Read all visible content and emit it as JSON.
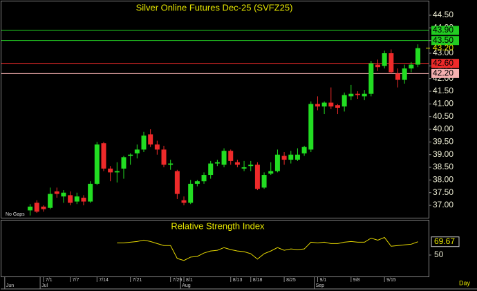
{
  "chart_data": [
    {
      "type": "candlestick",
      "title": "Silver Online Futures Dec-25 (SVFZ25)",
      "note": "No Gaps",
      "x": [
        0,
        1,
        2,
        3,
        4,
        5,
        6,
        7,
        8,
        9,
        10,
        11,
        12,
        13,
        14,
        15,
        16,
        17,
        18,
        19,
        20,
        21,
        22,
        23,
        24,
        25,
        26,
        27,
        28,
        29,
        30,
        31,
        32,
        33,
        34,
        35,
        36,
        37,
        38,
        39,
        40,
        41,
        42,
        43,
        44,
        45,
        46,
        47,
        48,
        49,
        50,
        51,
        52,
        53,
        54,
        55,
        56,
        57,
        58
      ],
      "open": [
        36.8,
        37.1,
        36.95,
        36.9,
        37.55,
        37.35,
        37.4,
        37.15,
        37.3,
        37.15,
        37.85,
        39.45,
        38.45,
        38.3,
        38.45,
        38.95,
        39.05,
        39.2,
        39.8,
        39.4,
        39.2,
        38.6,
        38.35,
        37.2,
        37.1,
        37.85,
        37.95,
        38.2,
        38.65,
        38.6,
        39.15,
        38.7,
        38.45,
        38.55,
        38.6,
        37.7,
        38.25,
        38.35,
        38.95,
        38.8,
        38.8,
        39.05,
        39.2,
        41.0,
        40.9,
        41.05,
        40.95,
        40.9,
        41.3,
        41.4,
        41.3,
        41.4,
        42.55,
        42.5,
        43.0,
        42.2,
        41.95,
        42.4,
        42.55
      ],
      "high": [
        37.05,
        37.2,
        37.0,
        37.7,
        37.7,
        37.6,
        37.55,
        37.5,
        37.4,
        37.95,
        39.5,
        39.5,
        38.55,
        38.7,
        38.95,
        39.05,
        39.4,
        39.9,
        40.0,
        39.55,
        39.35,
        38.8,
        38.4,
        37.35,
        38.0,
        38.0,
        38.3,
        38.75,
        38.8,
        39.25,
        39.2,
        38.8,
        38.75,
        38.75,
        38.7,
        38.3,
        38.7,
        39.2,
        39.1,
        39.15,
        39.25,
        39.35,
        41.1,
        41.3,
        41.1,
        41.65,
        41.0,
        41.45,
        41.75,
        41.5,
        41.55,
        42.7,
        42.75,
        43.1,
        43.15,
        42.4,
        42.55,
        42.65,
        43.35
      ],
      "low": [
        36.6,
        36.7,
        36.75,
        36.85,
        37.3,
        37.1,
        37.0,
        37.05,
        37.0,
        37.1,
        37.8,
        38.35,
        37.95,
        37.9,
        38.05,
        38.6,
        38.85,
        39.1,
        39.3,
        39.0,
        38.5,
        38.4,
        37.25,
        37.0,
        37.05,
        37.75,
        37.85,
        38.05,
        38.55,
        38.5,
        38.6,
        38.5,
        38.35,
        38.35,
        37.6,
        37.65,
        38.2,
        38.3,
        38.6,
        38.65,
        38.75,
        38.95,
        39.1,
        40.75,
        40.6,
        40.8,
        40.6,
        40.7,
        41.15,
        41.2,
        41.15,
        41.3,
        42.3,
        42.4,
        42.2,
        41.65,
        41.8,
        42.25,
        42.45
      ],
      "close": [
        36.95,
        36.75,
        36.85,
        37.45,
        37.45,
        37.5,
        37.1,
        37.35,
        37.15,
        37.85,
        39.4,
        38.45,
        38.3,
        38.35,
        38.9,
        39.0,
        39.2,
        39.75,
        39.4,
        39.2,
        38.6,
        38.65,
        37.45,
        37.1,
        37.85,
        37.95,
        38.2,
        38.65,
        38.7,
        39.15,
        38.75,
        38.6,
        38.5,
        38.6,
        37.65,
        38.2,
        38.35,
        39.0,
        38.8,
        39.0,
        39.0,
        39.3,
        41.0,
        40.9,
        41.05,
        40.9,
        40.85,
        41.35,
        41.4,
        41.35,
        41.4,
        42.6,
        42.45,
        43.0,
        42.25,
        41.95,
        42.4,
        42.55,
        43.2
      ],
      "up_color": "#22dd22",
      "down_color": "#ee2a2a",
      "xlim": [
        -4.3,
        59.6
      ],
      "ylim": [
        36.5,
        45.1
      ],
      "yticks": [
        {
          "value": 37,
          "label": "37.00"
        },
        {
          "value": 37.5,
          "label": "37.50"
        },
        {
          "value": 38,
          "label": "38.00"
        },
        {
          "value": 38.5,
          "label": "38.50"
        },
        {
          "value": 39,
          "label": "39.00"
        },
        {
          "value": 39.5,
          "label": "39.50"
        },
        {
          "value": 40,
          "label": "40.00"
        },
        {
          "value": 40.5,
          "label": "40.50"
        },
        {
          "value": 41,
          "label": "41.00"
        },
        {
          "value": 41.5,
          "label": "41.50"
        },
        {
          "value": 42,
          "label": "42.00"
        },
        {
          "value": 42.5,
          "label": "42.50"
        },
        {
          "value": 43,
          "label": "43.00"
        },
        {
          "value": 43.5,
          "label": "43.50"
        },
        {
          "value": 44,
          "label": "44.00"
        },
        {
          "value": 44.5,
          "label": "44.50"
        }
      ],
      "levels": [
        {
          "value": 43.9,
          "label": "43.90",
          "color": "#22cc22"
        },
        {
          "value": 43.5,
          "label": "43.50",
          "color": "#22cc22"
        },
        {
          "value": 42.6,
          "label": "42.60",
          "color": "#ee2a2a"
        },
        {
          "value": 42.2,
          "label": "42.20",
          "color": "#f4b0b0"
        }
      ],
      "last": {
        "value": 43.2,
        "label": "43.20"
      }
    },
    {
      "type": "line",
      "title": "Relative Strength Index",
      "color": "#e6d800",
      "x": [
        13,
        14,
        15,
        16,
        17,
        18,
        19,
        20,
        21,
        22,
        23,
        24,
        25,
        26,
        27,
        28,
        29,
        30,
        31,
        32,
        33,
        34,
        35,
        36,
        37,
        38,
        39,
        40,
        41,
        42,
        43,
        44,
        45,
        46,
        47,
        48,
        49,
        50,
        51,
        52,
        53,
        54,
        55,
        56,
        57,
        58
      ],
      "values": [
        68,
        68,
        69,
        70,
        72,
        70,
        67,
        64,
        64,
        45,
        42,
        47,
        48,
        53,
        56,
        57,
        61,
        58,
        56,
        55,
        52,
        44,
        52,
        56,
        61,
        57,
        59,
        58,
        59,
        69,
        68,
        69,
        67,
        67,
        69,
        70,
        69,
        69,
        75,
        72,
        76,
        63,
        64,
        65,
        66,
        69.67
      ],
      "xlim": [
        -4.3,
        59.6
      ],
      "ylim": [
        0,
        100
      ],
      "yticks": [
        50
      ],
      "xticks": [
        {
          "value": 2,
          "label": "7/1"
        },
        {
          "value": 6,
          "label": "7/7"
        },
        {
          "value": 10,
          "label": "7/14"
        },
        {
          "value": 15,
          "label": "7/21"
        },
        {
          "value": 21,
          "label": "7/29"
        },
        {
          "value": 23,
          "label": "8/1"
        },
        {
          "value": 30,
          "label": "8/13"
        },
        {
          "value": 33,
          "label": "8/18"
        },
        {
          "value": 38,
          "label": "8/25"
        },
        {
          "value": 43,
          "label": "9/1"
        },
        {
          "value": 48,
          "label": "9/8"
        },
        {
          "value": 53,
          "label": "9/15"
        }
      ],
      "month_ticks": [
        {
          "value": -3.8,
          "label": "Jun"
        },
        {
          "value": 1.5,
          "label": "Jul"
        },
        {
          "value": 22.5,
          "label": "Aug"
        },
        {
          "value": 42.5,
          "label": "Sep"
        }
      ],
      "xlabel": "Day"
    }
  ]
}
